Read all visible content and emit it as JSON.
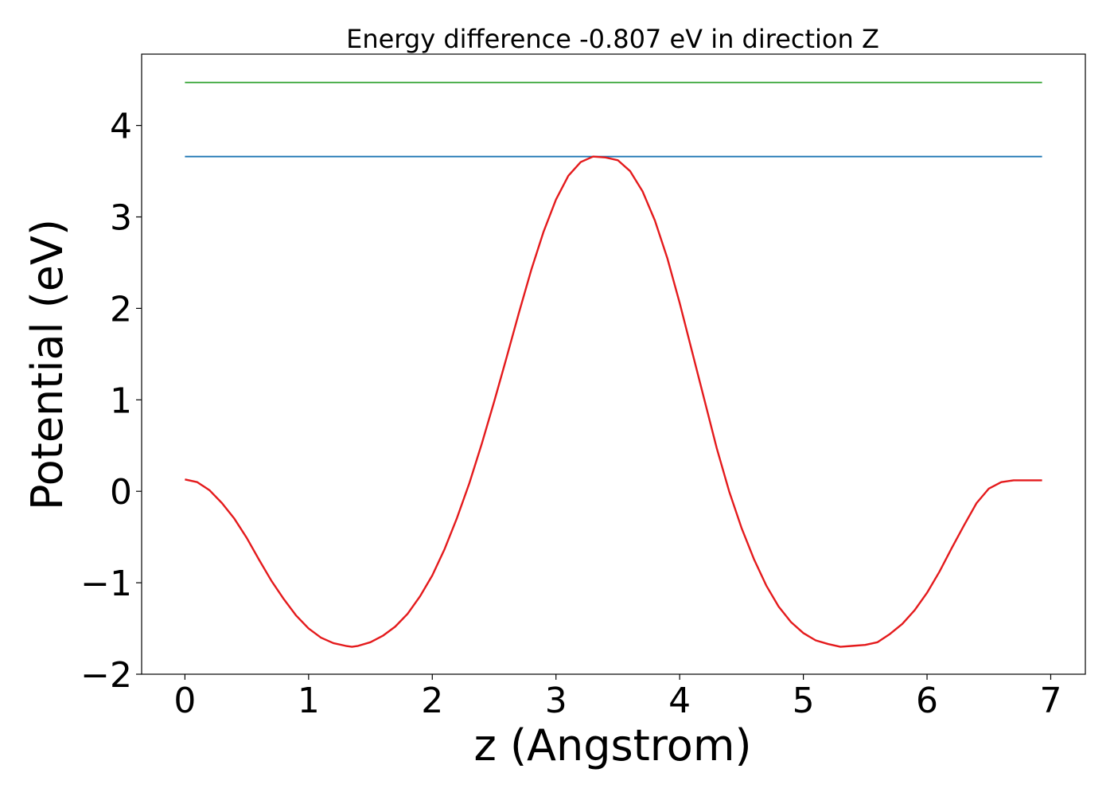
{
  "chart_data": {
    "type": "line",
    "title": "Energy difference -0.807 eV in direction Z",
    "xlabel": "z (Angstrom)",
    "ylabel": "Potential (eV)",
    "xlim": [
      -0.35,
      7.28
    ],
    "ylim": [
      -2.0,
      4.78
    ],
    "xticks": [
      0,
      1,
      2,
      3,
      4,
      5,
      6,
      7
    ],
    "xtick_labels": [
      "0",
      "1",
      "2",
      "3",
      "4",
      "5",
      "6",
      "7"
    ],
    "yticks": [
      -2,
      -1,
      0,
      1,
      2,
      3,
      4
    ],
    "ytick_labels": [
      "−2",
      "−1",
      "0",
      "1",
      "2",
      "3",
      "4"
    ],
    "grid": false,
    "series": [
      {
        "color": "#2ca02c",
        "x": [
          0.0,
          6.93
        ],
        "y": [
          4.47,
          4.47
        ]
      },
      {
        "color": "#1f77b4",
        "x": [
          0.0,
          6.93
        ],
        "y": [
          3.66,
          3.66
        ]
      },
      {
        "color": "#e41a1c",
        "x": [
          0.0,
          0.1,
          0.2,
          0.3,
          0.4,
          0.5,
          0.6,
          0.7,
          0.8,
          0.9,
          1.0,
          1.1,
          1.2,
          1.3,
          1.35,
          1.4,
          1.5,
          1.6,
          1.7,
          1.8,
          1.9,
          2.0,
          2.1,
          2.2,
          2.3,
          2.4,
          2.5,
          2.6,
          2.7,
          2.8,
          2.9,
          3.0,
          3.1,
          3.2,
          3.3,
          3.4,
          3.5,
          3.6,
          3.7,
          3.8,
          3.9,
          4.0,
          4.1,
          4.2,
          4.3,
          4.4,
          4.5,
          4.6,
          4.7,
          4.8,
          4.9,
          5.0,
          5.1,
          5.2,
          5.3,
          5.4,
          5.5,
          5.6,
          5.7,
          5.8,
          5.9,
          6.0,
          6.1,
          6.2,
          6.3,
          6.4,
          6.5,
          6.6,
          6.7,
          6.8,
          6.93
        ],
        "y": [
          0.13,
          0.1,
          0.01,
          -0.13,
          -0.3,
          -0.51,
          -0.75,
          -0.98,
          -1.18,
          -1.36,
          -1.5,
          -1.6,
          -1.66,
          -1.69,
          -1.7,
          -1.69,
          -1.65,
          -1.58,
          -1.48,
          -1.34,
          -1.15,
          -0.92,
          -0.63,
          -0.29,
          0.09,
          0.52,
          0.98,
          1.46,
          1.95,
          2.42,
          2.84,
          3.19,
          3.45,
          3.6,
          3.66,
          3.65,
          3.62,
          3.5,
          3.28,
          2.96,
          2.55,
          2.06,
          1.53,
          1.0,
          0.47,
          0.0,
          -0.4,
          -0.74,
          -1.03,
          -1.26,
          -1.43,
          -1.55,
          -1.63,
          -1.67,
          -1.7,
          -1.69,
          -1.68,
          -1.65,
          -1.56,
          -1.45,
          -1.3,
          -1.11,
          -0.88,
          -0.62,
          -0.37,
          -0.13,
          0.03,
          0.1,
          0.12,
          0.12,
          0.12
        ]
      }
    ]
  }
}
